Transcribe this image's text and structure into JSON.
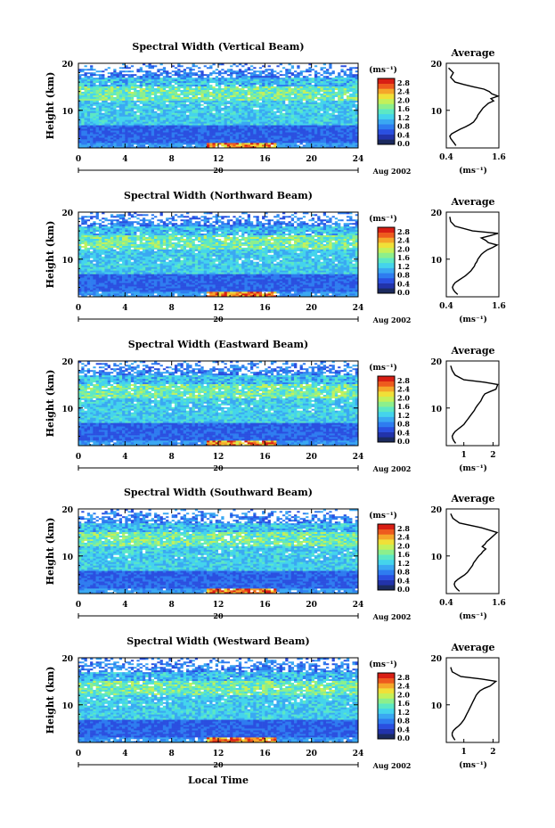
{
  "colors": {
    "colormap": [
      "#1b2a5e",
      "#2233aa",
      "#2a4fe0",
      "#2e7cf0",
      "#3aa8f2",
      "#44d4ec",
      "#5ce8c4",
      "#8cef8c",
      "#c4f05a",
      "#f0e038",
      "#f5a62a",
      "#ee5a1e",
      "#d81e14"
    ],
    "missing": "#ffffff",
    "profile_line": "#000000"
  },
  "shared": {
    "x_label": "Local Time",
    "date_label": "20",
    "month_label": "Aug 2002",
    "y_label": "Height (km)",
    "colorbar_unit": "(ms⁻¹)",
    "colorbar_ticks": [
      "0.0",
      "0.4",
      "0.8",
      "1.2",
      "1.6",
      "2.0",
      "2.4",
      "2.8"
    ],
    "x_ticks": [
      0,
      4,
      8,
      12,
      16,
      20,
      24
    ],
    "y_ticks": [
      10,
      20
    ],
    "profile_title": "Average",
    "profile_unit": "(ms⁻¹)"
  },
  "chart_data": [
    {
      "type": "heatmap",
      "title": "Spectral Width (Vertical Beam)",
      "xlim": [
        0,
        24
      ],
      "ylim": [
        2,
        20
      ],
      "xlabel": "",
      "ylabel": "Height (km)",
      "colorbar": {
        "range": [
          0.0,
          2.8
        ],
        "unit": "ms-1"
      },
      "profile": {
        "title": "Average",
        "xlim": [
          0.4,
          1.6
        ],
        "xticks": [
          "0.4",
          "1.6"
        ],
        "yticks": [
          "10",
          "20"
        ],
        "x": [
          0.62,
          0.58,
          0.54,
          0.5,
          0.48,
          0.52,
          0.62,
          0.72,
          0.84,
          0.94,
          1.02,
          1.06,
          1.1,
          1.12,
          1.16,
          1.2,
          1.24,
          1.3,
          1.36,
          1.48,
          1.42,
          1.58,
          1.44,
          1.38,
          1.26,
          1.02,
          0.8,
          0.6,
          0.5,
          0.56,
          0.45
        ],
        "y": [
          2.5,
          3,
          3.5,
          4,
          4.5,
          5,
          5.5,
          6,
          6.5,
          7,
          7.5,
          8,
          8.5,
          9,
          9.5,
          10,
          10.5,
          11,
          11.5,
          12,
          12.5,
          13,
          13.5,
          14,
          14.5,
          15,
          15.5,
          16,
          17,
          18,
          19
        ]
      }
    },
    {
      "type": "heatmap",
      "title": "Spectral Width (Northward Beam)",
      "xlim": [
        0,
        24
      ],
      "ylim": [
        2,
        20
      ],
      "xlabel": "",
      "ylabel": "Height (km)",
      "colorbar": {
        "range": [
          0.0,
          2.8
        ],
        "unit": "ms-1"
      },
      "profile": {
        "title": "Average",
        "xlim": [
          0.4,
          1.6
        ],
        "xticks": [
          "0.4",
          "1.6"
        ],
        "yticks": [
          "10",
          "20"
        ],
        "x": [
          0.66,
          0.6,
          0.56,
          0.54,
          0.56,
          0.6,
          0.68,
          0.76,
          0.84,
          0.9,
          0.96,
          1.0,
          1.04,
          1.06,
          1.1,
          1.12,
          1.16,
          1.2,
          1.26,
          1.34,
          1.46,
          1.56,
          1.36,
          1.3,
          1.2,
          1.4,
          1.58,
          1.0,
          0.6,
          0.5,
          0.48
        ],
        "y": [
          2.5,
          3,
          3.5,
          4,
          4.5,
          5,
          5.5,
          6,
          6.5,
          7,
          7.5,
          8,
          8.5,
          9,
          9.5,
          10,
          10.5,
          11,
          11.5,
          12,
          12.5,
          13,
          13.5,
          14,
          14.5,
          15,
          15.5,
          16,
          17,
          18,
          19
        ]
      }
    },
    {
      "type": "heatmap",
      "title": "Spectral Width (Eastward Beam)",
      "xlim": [
        0,
        24
      ],
      "ylim": [
        2,
        20
      ],
      "xlabel": "",
      "ylabel": "Height (km)",
      "colorbar": {
        "range": [
          0.0,
          2.8
        ],
        "unit": "ms-1"
      },
      "profile": {
        "title": "Average",
        "xlim": [
          0.4,
          2.2
        ],
        "xticks": [
          "1",
          "2"
        ],
        "yticks": [
          "10",
          "20"
        ],
        "x": [
          0.72,
          0.66,
          0.62,
          0.6,
          0.64,
          0.7,
          0.8,
          0.9,
          1.0,
          1.06,
          1.12,
          1.18,
          1.24,
          1.3,
          1.36,
          1.4,
          1.46,
          1.52,
          1.58,
          1.62,
          1.66,
          1.72,
          1.9,
          2.1,
          2.16,
          1.7,
          1.0,
          0.7,
          0.6,
          0.55
        ],
        "y": [
          2.5,
          3,
          3.5,
          4,
          4.5,
          5,
          5.5,
          6,
          6.5,
          7,
          7.5,
          8,
          8.5,
          9,
          9.5,
          10,
          10.5,
          11,
          11.5,
          12,
          12.5,
          13,
          13.5,
          14,
          15,
          15.5,
          16,
          17,
          18,
          19
        ]
      }
    },
    {
      "type": "heatmap",
      "title": "Spectral Width (Southward Beam)",
      "xlim": [
        0,
        24
      ],
      "ylim": [
        2,
        20
      ],
      "xlabel": "",
      "ylabel": "Height (km)",
      "colorbar": {
        "range": [
          0.0,
          2.8
        ],
        "unit": "ms-1"
      },
      "profile": {
        "title": "Average",
        "xlim": [
          0.4,
          1.6
        ],
        "xticks": [
          "0.4",
          "1.6"
        ],
        "yticks": [
          "10",
          "20"
        ],
        "x": [
          0.7,
          0.64,
          0.6,
          0.58,
          0.6,
          0.66,
          0.74,
          0.82,
          0.88,
          0.92,
          0.96,
          1.0,
          1.02,
          1.06,
          1.1,
          1.14,
          1.2,
          1.24,
          1.3,
          1.22,
          1.28,
          1.32,
          1.38,
          1.44,
          1.5,
          1.56,
          1.2,
          0.7,
          0.55,
          0.5
        ],
        "y": [
          2.5,
          3,
          3.5,
          4,
          4.5,
          5,
          5.5,
          6,
          6.5,
          7,
          7.5,
          8,
          8.5,
          9,
          9.5,
          10,
          10.5,
          11,
          11.5,
          12,
          12.5,
          13,
          13.5,
          14,
          14.5,
          15,
          16,
          17,
          18,
          19
        ]
      }
    },
    {
      "type": "heatmap",
      "title": "Spectral Width (Westward Beam)",
      "xlim": [
        0,
        24
      ],
      "ylim": [
        2,
        20
      ],
      "xlabel": "",
      "ylabel": "Height (km)",
      "colorbar": {
        "range": [
          0.0,
          2.8
        ],
        "unit": "ms-1"
      },
      "profile": {
        "title": "Average",
        "xlim": [
          0.4,
          2.2
        ],
        "xticks": [
          "1",
          "2"
        ],
        "yticks": [
          "10",
          "20"
        ],
        "x": [
          0.7,
          0.64,
          0.6,
          0.6,
          0.64,
          0.72,
          0.82,
          0.9,
          0.96,
          1.02,
          1.06,
          1.1,
          1.14,
          1.18,
          1.22,
          1.26,
          1.3,
          1.34,
          1.38,
          1.42,
          1.48,
          1.56,
          1.7,
          1.9,
          2.1,
          1.6,
          0.9,
          0.6,
          0.55
        ],
        "y": [
          2.5,
          3,
          3.5,
          4,
          4.5,
          5,
          5.5,
          6,
          6.5,
          7,
          7.5,
          8,
          8.5,
          9,
          9.5,
          10,
          10.5,
          11,
          11.5,
          12,
          12.5,
          13,
          13.5,
          14,
          15,
          15.5,
          16,
          17,
          18
        ]
      }
    }
  ]
}
